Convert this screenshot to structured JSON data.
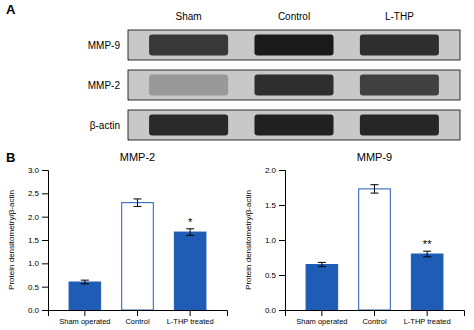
{
  "chart_data": [
    {
      "type": "blot",
      "panel_label": "A",
      "rows": [
        "MMP-9",
        "MMP-2",
        "β-actin"
      ],
      "columns": [
        "Sham",
        "Control",
        "L-THP"
      ],
      "cells": [
        [
          0.22,
          0.1,
          0.18
        ],
        [
          0.6,
          0.18,
          0.25
        ],
        [
          0.16,
          0.13,
          0.15
        ]
      ]
    },
    {
      "type": "bar",
      "panel_label": "B",
      "title": "MMP-2",
      "ylabel": "Protein densitometry/β-actin",
      "categories": [
        "Sham operated",
        "Control",
        "L-THP treated"
      ],
      "values": [
        0.6,
        2.3,
        1.67
      ],
      "errors": [
        0.04,
        0.08,
        0.07
      ],
      "colors": [
        "#1f5cb5",
        "#ffffff",
        "#1f5cb5"
      ],
      "color": "#1f5cb5",
      "ylim": [
        0,
        3.0
      ],
      "yticks": [
        {
          "value": 0.0,
          "label": "0.0"
        },
        0.5,
        {
          "value": 1.0,
          "label": "1.0"
        },
        1.5,
        {
          "value": 2.0,
          "label": "2.0"
        },
        2.5,
        {
          "value": 3.0,
          "label": "3.0"
        }
      ],
      "annotations": [
        null,
        null,
        "*"
      ]
    },
    {
      "type": "bar",
      "title": "MMP-9",
      "ylabel": "Protein densitometry/β-actin",
      "categories": [
        "Sham operated",
        "Control",
        "L-THP treated"
      ],
      "values": [
        0.65,
        1.73,
        0.8
      ],
      "errors": [
        0.03,
        0.06,
        0.04
      ],
      "colors": [
        "#1f5cb5",
        "#ffffff",
        "#1f5cb5"
      ],
      "color": "#1f5cb5",
      "ylim": [
        0,
        2.0
      ],
      "yticks": [
        {
          "value": 0.0,
          "label": "0.0"
        },
        0.5,
        {
          "value": 1.0,
          "label": "1.0"
        },
        1.5,
        {
          "value": 2.0,
          "label": "2.0"
        }
      ],
      "annotations": [
        null,
        null,
        "**"
      ]
    }
  ]
}
